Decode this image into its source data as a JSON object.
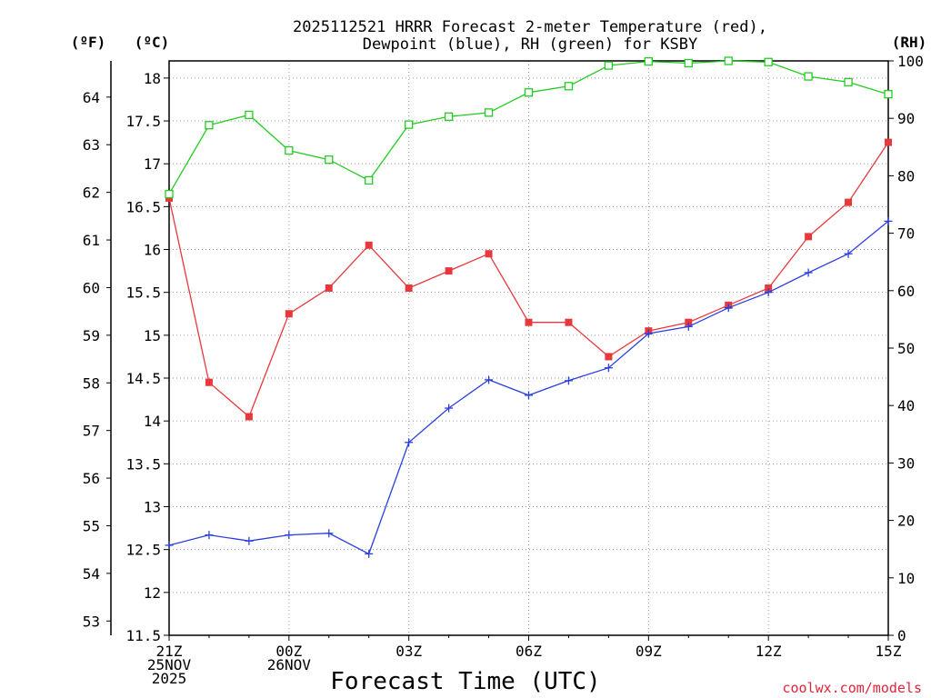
{
  "chart_data": {
    "type": "line",
    "title": [
      "2025112521 HRRR Forecast 2-meter Temperature (red),",
      "Dewpoint (blue), RH (green) for KSBY"
    ],
    "xlabel": "Forecast Time (UTC)",
    "units": {
      "left_outer": "(ºF)",
      "left_inner": "(ºC)",
      "right": "(RH)"
    },
    "x": [
      0,
      1,
      2,
      3,
      4,
      5,
      6,
      7,
      8,
      9,
      10,
      11,
      12,
      13,
      14,
      15,
      16,
      17,
      18
    ],
    "x_ticks": [
      {
        "x": 0,
        "lines": [
          "21Z",
          "25NOV",
          "2025"
        ]
      },
      {
        "x": 3,
        "lines": [
          "00Z",
          "26NOV"
        ]
      },
      {
        "x": 6,
        "lines": [
          "03Z"
        ]
      },
      {
        "x": 9,
        "lines": [
          "06Z"
        ]
      },
      {
        "x": 12,
        "lines": [
          "09Z"
        ]
      },
      {
        "x": 15,
        "lines": [
          "12Z"
        ]
      },
      {
        "x": 18,
        "lines": [
          "15Z"
        ]
      }
    ],
    "xlim": [
      0,
      18
    ],
    "ylim_c": [
      11.5,
      18.2
    ],
    "ylim_rh": [
      0,
      100
    ],
    "celsius_ticks": [
      "11.5",
      "12",
      "12.5",
      "13",
      "13.5",
      "14",
      "14.5",
      "15",
      "15.5",
      "16",
      "16.5",
      "17",
      "17.5",
      "18"
    ],
    "fahrenheit_ticks": [
      "53",
      "54",
      "55",
      "56",
      "57",
      "58",
      "59",
      "60",
      "61",
      "62",
      "63",
      "64"
    ],
    "rh_ticks": [
      "0",
      "10",
      "20",
      "30",
      "40",
      "50",
      "60",
      "70",
      "80",
      "90",
      "100"
    ],
    "grid": true,
    "series": [
      {
        "name": "Temperature",
        "unit": "C",
        "color": "#e8383c",
        "marker": "square-filled",
        "values": [
          16.6,
          14.45,
          14.05,
          15.25,
          15.55,
          16.05,
          15.55,
          15.75,
          15.95,
          15.15,
          15.15,
          14.75,
          15.05,
          15.15,
          15.35,
          15.55,
          16.15,
          16.55,
          17.25
        ]
      },
      {
        "name": "Dewpoint",
        "unit": "C",
        "color": "#2b3fe0",
        "marker": "plus",
        "values": [
          12.55,
          12.67,
          12.6,
          12.67,
          12.69,
          12.45,
          13.75,
          14.15,
          14.48,
          14.3,
          14.47,
          14.62,
          15.02,
          15.1,
          15.32,
          15.5,
          15.73,
          15.95,
          16.33
        ]
      },
      {
        "name": "RH",
        "unit": "%",
        "color": "#22cc22",
        "marker": "square-open",
        "values": [
          76.8,
          88.8,
          90.6,
          84.4,
          82.8,
          79.2,
          88.9,
          90.3,
          91.0,
          94.5,
          95.6,
          99.2,
          99.9,
          99.6,
          100.0,
          99.8,
          97.3,
          96.3,
          94.2
        ]
      }
    ]
  },
  "watermark": "coolwx.com/models"
}
